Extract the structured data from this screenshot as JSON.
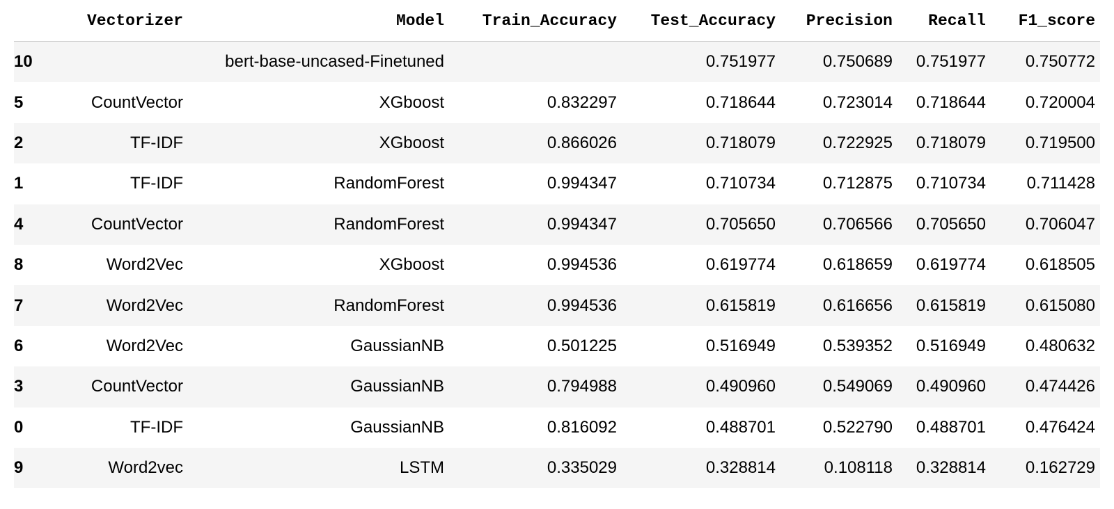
{
  "table": {
    "columns": [
      "",
      "Vectorizer",
      "Model",
      "Train_Accuracy",
      "Test_Accuracy",
      "Precision",
      "Recall",
      "F1_score"
    ],
    "rows": [
      {
        "index": "10",
        "vectorizer": "",
        "model": "bert-base-uncased-Finetuned",
        "train_accuracy": "",
        "test_accuracy": "0.751977",
        "precision": "0.750689",
        "recall": "0.751977",
        "f1_score": "0.750772"
      },
      {
        "index": "5",
        "vectorizer": "CountVector",
        "model": "XGboost",
        "train_accuracy": "0.832297",
        "test_accuracy": "0.718644",
        "precision": "0.723014",
        "recall": "0.718644",
        "f1_score": "0.720004"
      },
      {
        "index": "2",
        "vectorizer": "TF-IDF",
        "model": "XGboost",
        "train_accuracy": "0.866026",
        "test_accuracy": "0.718079",
        "precision": "0.722925",
        "recall": "0.718079",
        "f1_score": "0.719500"
      },
      {
        "index": "1",
        "vectorizer": "TF-IDF",
        "model": "RandomForest",
        "train_accuracy": "0.994347",
        "test_accuracy": "0.710734",
        "precision": "0.712875",
        "recall": "0.710734",
        "f1_score": "0.711428"
      },
      {
        "index": "4",
        "vectorizer": "CountVector",
        "model": "RandomForest",
        "train_accuracy": "0.994347",
        "test_accuracy": "0.705650",
        "precision": "0.706566",
        "recall": "0.705650",
        "f1_score": "0.706047"
      },
      {
        "index": "8",
        "vectorizer": "Word2Vec",
        "model": "XGboost",
        "train_accuracy": "0.994536",
        "test_accuracy": "0.619774",
        "precision": "0.618659",
        "recall": "0.619774",
        "f1_score": "0.618505"
      },
      {
        "index": "7",
        "vectorizer": "Word2Vec",
        "model": "RandomForest",
        "train_accuracy": "0.994536",
        "test_accuracy": "0.615819",
        "precision": "0.616656",
        "recall": "0.615819",
        "f1_score": "0.615080"
      },
      {
        "index": "6",
        "vectorizer": "Word2Vec",
        "model": "GaussianNB",
        "train_accuracy": "0.501225",
        "test_accuracy": "0.516949",
        "precision": "0.539352",
        "recall": "0.516949",
        "f1_score": "0.480632"
      },
      {
        "index": "3",
        "vectorizer": "CountVector",
        "model": "GaussianNB",
        "train_accuracy": "0.794988",
        "test_accuracy": "0.490960",
        "precision": "0.549069",
        "recall": "0.490960",
        "f1_score": "0.474426"
      },
      {
        "index": "0",
        "vectorizer": "TF-IDF",
        "model": "GaussianNB",
        "train_accuracy": "0.816092",
        "test_accuracy": "0.488701",
        "precision": "0.522790",
        "recall": "0.488701",
        "f1_score": "0.476424"
      },
      {
        "index": "9",
        "vectorizer": "Word2vec",
        "model": "LSTM",
        "train_accuracy": "0.335029",
        "test_accuracy": "0.328814",
        "precision": "0.108118",
        "recall": "0.328814",
        "f1_score": "0.162729"
      }
    ]
  }
}
